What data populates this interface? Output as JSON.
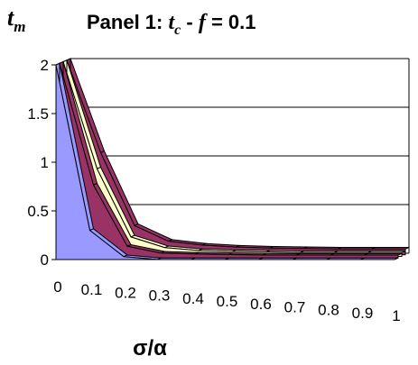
{
  "chart_data": {
    "type": "area",
    "title": {
      "prefix": "Panel 1: ",
      "var1": "t",
      "var1_sub": "c",
      "op": " - ",
      "var2": "f",
      "suffix": " = 0.1"
    },
    "ylabel": {
      "main": "t",
      "sub": "m"
    },
    "xlabel": "σ/α",
    "x": [
      0,
      0.1,
      0.2,
      0.3,
      0.4,
      0.5,
      0.6,
      0.7,
      0.8,
      0.9,
      1
    ],
    "x_ticks": [
      "0",
      "0.1",
      "0.2",
      "0.3",
      "0.4",
      "0.5",
      "0.6",
      "0.7",
      "0.8",
      "0.9",
      "1"
    ],
    "y_ticks": [
      "0",
      "0.5",
      "1",
      "1.5",
      "2"
    ],
    "ylim": [
      0,
      2
    ],
    "grid": true,
    "view": "3d",
    "series": [
      {
        "color": "#9999ff",
        "values": [
          2.0,
          0.3,
          0.03,
          0.0,
          0.0,
          0.0,
          0.0,
          0.0,
          0.0,
          0.0,
          0.0
        ]
      },
      {
        "color": "#993366",
        "values": [
          2.0,
          0.75,
          0.12,
          0.05,
          0.04,
          0.035,
          0.03,
          0.03,
          0.03,
          0.03,
          0.03
        ]
      },
      {
        "color": "#ffffcc",
        "values": [
          2.0,
          0.9,
          0.2,
          0.09,
          0.06,
          0.05,
          0.045,
          0.04,
          0.04,
          0.04,
          0.04
        ]
      },
      {
        "color": "#993366",
        "values": [
          2.0,
          1.05,
          0.3,
          0.14,
          0.1,
          0.08,
          0.07,
          0.065,
          0.06,
          0.06,
          0.06
        ]
      }
    ]
  }
}
